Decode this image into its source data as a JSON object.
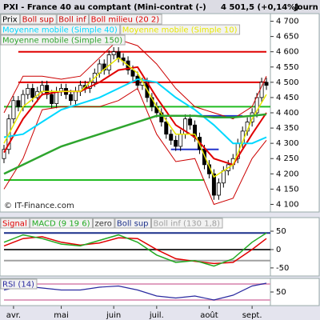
{
  "header": {
    "title": "PXI - France 40 au comptant (Mini-contrat  (-)",
    "quote": "4 501,5 (+0,14%)",
    "period": "Journ"
  },
  "watermark": "© IT-Finance.com",
  "chart_data": [
    {
      "type": "candlestick",
      "name": "Prix",
      "categories": [
        null,
        null,
        "avr.",
        null,
        null,
        null,
        null,
        null,
        null,
        null,
        null,
        null,
        "mai",
        null,
        null,
        null,
        null,
        null,
        null,
        null,
        null,
        null,
        null,
        "juin",
        null,
        null,
        null,
        null,
        null,
        null,
        null,
        null,
        "juil.",
        null,
        null,
        null,
        null,
        null,
        null,
        null,
        null,
        null,
        null,
        "août",
        null,
        null,
        null,
        null,
        null,
        null,
        null,
        null,
        "sept.",
        null,
        null,
        null
      ],
      "open": [
        4250,
        4280,
        4380,
        4440,
        4420,
        4460,
        4480,
        4450,
        4470,
        4490,
        4460,
        4430,
        4470,
        4480,
        4460,
        4440,
        4470,
        4490,
        4480,
        4500,
        4530,
        4560,
        4540,
        4590,
        4600,
        4580,
        4570,
        4540,
        4520,
        4490,
        4500,
        4450,
        4420,
        4400,
        4370,
        4330,
        4310,
        4290,
        4330,
        4380,
        4360,
        4320,
        4280,
        4230,
        4200,
        4130,
        4170,
        4210,
        4230,
        4250,
        4300,
        4340,
        4370,
        4400,
        4450,
        4500
      ],
      "high": [
        4295,
        4395,
        4455,
        4455,
        4475,
        4495,
        4495,
        4485,
        4505,
        4505,
        4475,
        4485,
        4495,
        4495,
        4475,
        4485,
        4505,
        4505,
        4515,
        4545,
        4575,
        4575,
        4605,
        4615,
        4615,
        4595,
        4585,
        4555,
        4535,
        4515,
        4515,
        4465,
        4435,
        4415,
        4385,
        4345,
        4325,
        4345,
        4395,
        4395,
        4375,
        4335,
        4295,
        4245,
        4215,
        4185,
        4225,
        4245,
        4265,
        4315,
        4355,
        4385,
        4415,
        4465,
        4515,
        4515
      ],
      "low": [
        4235,
        4265,
        4365,
        4405,
        4405,
        4445,
        4435,
        4435,
        4455,
        4445,
        4415,
        4415,
        4455,
        4445,
        4425,
        4425,
        4455,
        4465,
        4465,
        4485,
        4515,
        4525,
        4525,
        4575,
        4565,
        4555,
        4525,
        4505,
        4475,
        4475,
        4435,
        4405,
        4385,
        4355,
        4315,
        4295,
        4275,
        4275,
        4315,
        4345,
        4305,
        4265,
        4215,
        4185,
        4115,
        4115,
        4155,
        4195,
        4215,
        4235,
        4285,
        4325,
        4355,
        4385,
        4435,
        4475
      ],
      "close": [
        4280,
        4380,
        4440,
        4420,
        4460,
        4480,
        4450,
        4470,
        4490,
        4460,
        4430,
        4470,
        4480,
        4460,
        4440,
        4470,
        4490,
        4480,
        4500,
        4530,
        4560,
        4540,
        4590,
        4600,
        4580,
        4570,
        4540,
        4520,
        4490,
        4500,
        4450,
        4420,
        4400,
        4370,
        4330,
        4310,
        4290,
        4330,
        4380,
        4360,
        4320,
        4280,
        4230,
        4200,
        4130,
        4170,
        4210,
        4230,
        4250,
        4300,
        4340,
        4370,
        4400,
        4450,
        4500,
        4490
      ],
      "ylim": [
        4075,
        4725
      ],
      "yticks": [
        {
          "value": 4100,
          "label": "4 100"
        },
        {
          "value": 4150,
          "label": "4 150"
        },
        {
          "value": 4200,
          "label": "4 200"
        },
        {
          "value": 4250,
          "label": "4 250"
        },
        {
          "value": 4300,
          "label": "4 300"
        },
        {
          "value": 4350,
          "label": "4 350"
        },
        {
          "value": 4400,
          "label": "4 400"
        },
        {
          "value": 4450,
          "label": "4 450"
        },
        {
          "value": 4500,
          "label": "4 500"
        },
        {
          "value": 4550,
          "label": "4 550"
        },
        {
          "value": 4600,
          "label": "4 600"
        },
        {
          "value": 4650,
          "label": "4 650"
        },
        {
          "value": 4700,
          "label": "4 700"
        }
      ],
      "series": [
        {
          "name": "Boll sup",
          "color": "#cc0000",
          "width": 1,
          "x": [
            0,
            4,
            8,
            12,
            16,
            20,
            24,
            28,
            32,
            36,
            40,
            44,
            48,
            52,
            55
          ],
          "values": [
            4400,
            4520,
            4520,
            4510,
            4520,
            4580,
            4640,
            4620,
            4560,
            4480,
            4420,
            4400,
            4380,
            4420,
            4520
          ]
        },
        {
          "name": "Boll inf",
          "color": "#cc0000",
          "width": 1,
          "x": [
            0,
            4,
            8,
            12,
            16,
            20,
            24,
            28,
            32,
            36,
            40,
            44,
            48,
            52,
            55
          ],
          "values": [
            4150,
            4250,
            4410,
            4420,
            4420,
            4420,
            4440,
            4480,
            4330,
            4240,
            4250,
            4100,
            4120,
            4250,
            4310
          ]
        },
        {
          "name": "Boll milieu (20 2)",
          "color": "#e00000",
          "width": 2,
          "x": [
            0,
            4,
            8,
            12,
            16,
            20,
            24,
            28,
            32,
            36,
            40,
            44,
            48,
            52,
            55
          ],
          "values": [
            4270,
            4380,
            4460,
            4470,
            4470,
            4500,
            4540,
            4550,
            4450,
            4360,
            4320,
            4250,
            4230,
            4330,
            4400
          ]
        },
        {
          "name": "Moyenne mobile (Simple 40)",
          "color": "#00d8ff",
          "width": 2,
          "x": [
            0,
            4,
            8,
            12,
            16,
            20,
            24,
            28,
            32,
            36,
            40,
            44,
            48,
            52,
            55
          ],
          "values": [
            4320,
            4330,
            4370,
            4410,
            4430,
            4450,
            4480,
            4510,
            4500,
            4450,
            4410,
            4360,
            4300,
            4300,
            4320
          ]
        },
        {
          "name": "Moyenne mobile (Simple 10)",
          "color": "#e8e800",
          "width": 1.5,
          "x": [
            0,
            4,
            8,
            12,
            16,
            20,
            24,
            28,
            32,
            36,
            40,
            44,
            48,
            52,
            55
          ],
          "values": [
            4300,
            4420,
            4470,
            4470,
            4470,
            4530,
            4580,
            4530,
            4420,
            4330,
            4330,
            4190,
            4230,
            4380,
            4460
          ]
        },
        {
          "name": "Moyenne mobile (Simple 150)",
          "color": "#2ea52e",
          "width": 2.5,
          "x": [
            0,
            4,
            8,
            12,
            16,
            20,
            24,
            28,
            32,
            36,
            40,
            44,
            48,
            52,
            55
          ],
          "values": [
            4200,
            4230,
            4260,
            4290,
            4310,
            4330,
            4350,
            4370,
            4390,
            4390,
            4390,
            4385,
            4385,
            4390,
            4395
          ]
        }
      ],
      "levels": [
        {
          "value": 4600,
          "color": "#e00000",
          "x": [
            3,
            55
          ]
        },
        {
          "value": 4500,
          "color": "#e00000",
          "x": [
            3,
            55
          ]
        },
        {
          "value": 4420,
          "color": "#22bb22",
          "x": [
            0,
            56
          ]
        },
        {
          "value": 4180,
          "color": "#22bb22",
          "x": [
            0,
            42
          ]
        },
        {
          "value": 4390,
          "color": "#2233cc",
          "x": [
            36,
            50
          ]
        },
        {
          "value": 4280,
          "color": "#2233cc",
          "x": [
            35,
            45
          ]
        }
      ]
    },
    {
      "type": "line",
      "ylim": [
        -72,
        87
      ],
      "yticks": [
        50,
        0,
        -50
      ],
      "series": [
        {
          "name": "Signal",
          "color": "#e00000",
          "width": 1.5,
          "x": [
            0,
            4,
            8,
            12,
            16,
            20,
            24,
            28,
            32,
            36,
            40,
            44,
            48,
            52,
            55
          ],
          "values": [
            10,
            30,
            35,
            20,
            12,
            18,
            32,
            30,
            0,
            -25,
            -32,
            -38,
            -35,
            0,
            30
          ]
        },
        {
          "name": "MACD (9 19 6)",
          "color": "#22aa22",
          "width": 1.5,
          "x": [
            0,
            4,
            8,
            12,
            16,
            20,
            24,
            28,
            32,
            36,
            40,
            44,
            48,
            52,
            55
          ],
          "values": [
            20,
            40,
            30,
            15,
            10,
            25,
            40,
            20,
            -15,
            -35,
            -30,
            -45,
            -25,
            20,
            45
          ]
        }
      ],
      "levels": [
        {
          "name": "zero",
          "value": 0,
          "color": "#333333",
          "x": [
            0,
            56
          ]
        },
        {
          "name": "Boll sup",
          "value": 45,
          "color": "#1a2f8a",
          "x": [
            0,
            56
          ]
        },
        {
          "name": "Boll inf (130 1,8)",
          "value": -30,
          "color": "#a0a0a0",
          "x": [
            0,
            56
          ]
        }
      ]
    },
    {
      "type": "line",
      "ylim": [
        16,
        84
      ],
      "yticks": [
        50
      ],
      "series": [
        {
          "name": "RSI (14)",
          "color": "#2a2aa0",
          "width": 1.2,
          "x": [
            0,
            4,
            8,
            12,
            16,
            20,
            24,
            28,
            32,
            36,
            40,
            44,
            48,
            52,
            55
          ],
          "values": [
            55,
            65,
            60,
            55,
            55,
            62,
            65,
            55,
            40,
            35,
            40,
            30,
            42,
            65,
            72
          ]
        }
      ],
      "levels": [
        {
          "value": 70,
          "color": "#e0a0c0",
          "x": [
            0,
            56
          ]
        },
        {
          "value": 30,
          "color": "#e0a0c0",
          "x": [
            0,
            56
          ]
        }
      ]
    }
  ]
}
